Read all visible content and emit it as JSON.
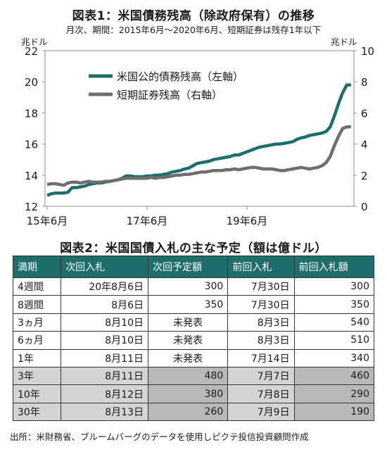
{
  "chart_title": "図表1：米国債務残高（除政府保有）の推移",
  "chart_subtitle": "月次、期間：2015年6月～2020年6月、短期証券は残存1年以下",
  "chart_data": {
    "type": "line",
    "title": "図表1：米国債務残高（除政府保有）の推移",
    "subtitle": "月次、期間：2015年6月～2020年6月、短期証券は残存1年以下",
    "left_axis": {
      "unit": "兆ドル",
      "ylim": [
        12,
        22
      ],
      "ticks": [
        12,
        14,
        16,
        18,
        20,
        22
      ]
    },
    "right_axis": {
      "unit": "兆ドル",
      "ylim": [
        0,
        10
      ],
      "ticks": [
        0,
        2,
        4,
        6,
        8,
        10
      ]
    },
    "x_ticks": [
      "15年6月",
      "17年6月",
      "19年6月"
    ],
    "legend_position": "upper-left",
    "series": [
      {
        "name": "米国公的債務残高（左軸）",
        "axis": "left",
        "color": "#1e6f6c",
        "values": [
          12.7,
          12.8,
          12.85,
          12.85,
          12.85,
          12.9,
          13.2,
          13.2,
          13.25,
          13.3,
          13.4,
          13.45,
          13.5,
          13.5,
          13.55,
          13.6,
          13.65,
          13.7,
          13.8,
          13.95,
          13.95,
          13.9,
          13.9,
          13.9,
          13.95,
          13.95,
          14.0,
          14.0,
          14.05,
          14.1,
          14.2,
          14.25,
          14.3,
          14.4,
          14.45,
          14.6,
          14.75,
          14.8,
          14.85,
          14.9,
          15.0,
          15.05,
          15.1,
          15.15,
          15.2,
          15.3,
          15.3,
          15.4,
          15.5,
          15.6,
          15.7,
          15.8,
          15.85,
          15.9,
          15.95,
          16.0,
          16.0,
          16.05,
          16.1,
          16.15,
          16.3,
          16.4,
          16.45,
          16.55,
          16.6,
          16.65,
          16.7,
          16.8,
          17.1,
          17.8,
          18.6,
          19.3,
          19.8,
          19.8
        ]
      },
      {
        "name": "短期証券残高（右軸）",
        "axis": "right",
        "color": "#6e6e6e",
        "values": [
          1.4,
          1.45,
          1.45,
          1.4,
          1.35,
          1.5,
          1.55,
          1.55,
          1.5,
          1.55,
          1.6,
          1.55,
          1.55,
          1.55,
          1.6,
          1.6,
          1.65,
          1.7,
          1.75,
          1.8,
          1.8,
          1.8,
          1.8,
          1.8,
          1.8,
          1.85,
          1.8,
          1.85,
          1.85,
          1.9,
          1.95,
          2.0,
          2.0,
          2.05,
          2.05,
          2.1,
          2.15,
          2.2,
          2.2,
          2.25,
          2.3,
          2.3,
          2.3,
          2.35,
          2.35,
          2.4,
          2.35,
          2.4,
          2.45,
          2.5,
          2.5,
          2.45,
          2.4,
          2.4,
          2.4,
          2.35,
          2.3,
          2.3,
          2.35,
          2.4,
          2.45,
          2.5,
          2.45,
          2.4,
          2.45,
          2.5,
          2.6,
          2.8,
          3.2,
          3.9,
          4.5,
          5.0,
          5.1,
          5.1
        ]
      }
    ]
  },
  "table_title": "図表2：米国国債入札の主な予定（額は億ドル）",
  "table": {
    "headers": [
      "満期",
      "次回入札",
      "次回予定額",
      "前回入札",
      "前回入札額"
    ],
    "rows": [
      {
        "shade": false,
        "cells": [
          "4週間",
          "20年8月6日",
          "300",
          "7月30日",
          "300"
        ]
      },
      {
        "shade": false,
        "cells": [
          "8週間",
          "8月6日",
          "350",
          "7月30日",
          "350"
        ]
      },
      {
        "shade": false,
        "cells": [
          "3ヵ月",
          "8月10日",
          "未発表",
          "8月3日",
          "540"
        ]
      },
      {
        "shade": false,
        "cells": [
          "6ヵ月",
          "8月10日",
          "未発表",
          "8月3日",
          "510"
        ]
      },
      {
        "shade": false,
        "cells": [
          "1年",
          "8月11日",
          "未発表",
          "7月14日",
          "340"
        ]
      },
      {
        "shade": true,
        "cells": [
          "3年",
          "8月11日",
          "480",
          "7月7日",
          "460"
        ]
      },
      {
        "shade": true,
        "cells": [
          "10年",
          "8月12日",
          "380",
          "7月8日",
          "290"
        ]
      },
      {
        "shade": true,
        "cells": [
          "30年",
          "8月13日",
          "260",
          "7月9日",
          "190"
        ]
      }
    ]
  },
  "source_note": "出所：米財務省、ブルームバーグのデータを使用しピクテ投信投資顧問作成"
}
